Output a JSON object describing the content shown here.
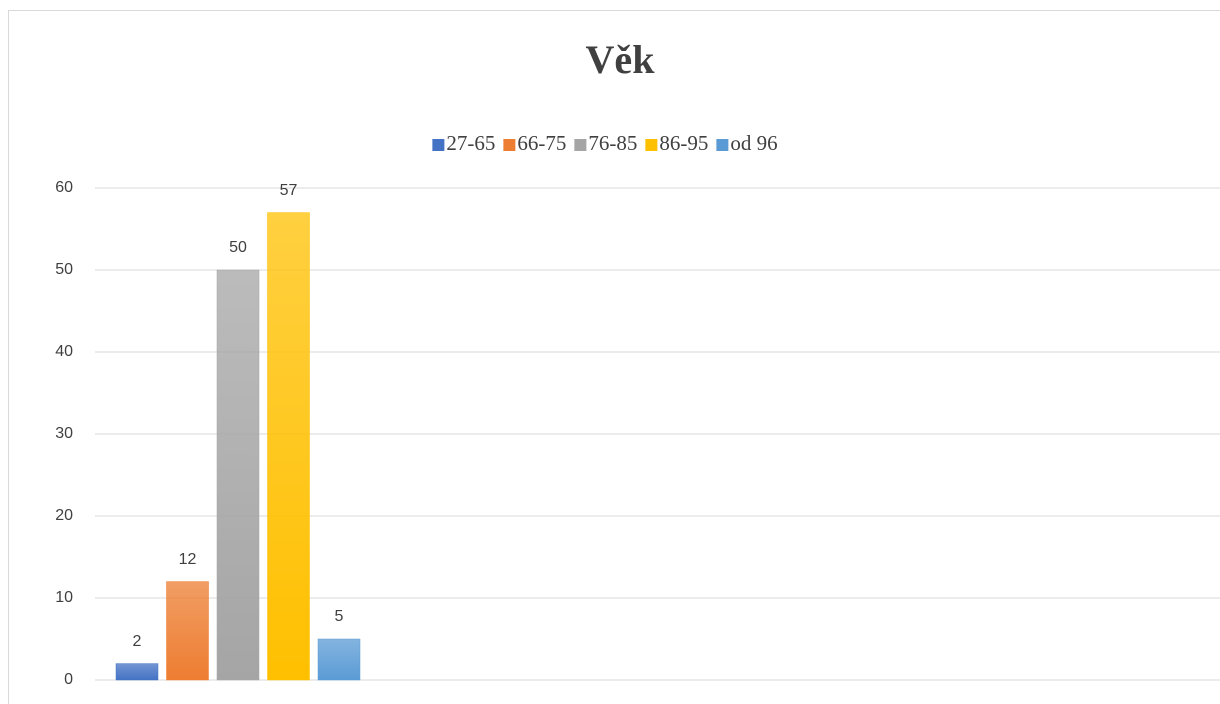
{
  "chart_data": {
    "type": "bar",
    "title": "Věk",
    "categories": [
      null
    ],
    "series": [
      {
        "name": "27-65",
        "color": "#4472c4",
        "values": [
          2
        ]
      },
      {
        "name": "66-75",
        "color": "#ed7d31",
        "values": [
          12
        ]
      },
      {
        "name": "76-85",
        "color": "#a5a5a5",
        "values": [
          50
        ]
      },
      {
        "name": "86-95",
        "color": "#ffc000",
        "values": [
          57
        ]
      },
      {
        "name": "od 96",
        "color": "#5b9bd5",
        "values": [
          5
        ]
      }
    ],
    "ylim": [
      0,
      60
    ],
    "yticks": [
      0,
      10,
      20,
      30,
      40,
      50,
      60
    ],
    "grid": true,
    "legend": "top"
  }
}
